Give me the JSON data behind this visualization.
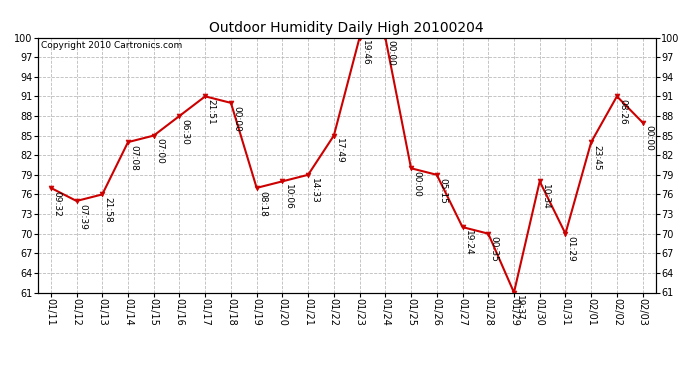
{
  "title": "Outdoor Humidity Daily High 20100204",
  "copyright": "Copyright 2010 Cartronics.com",
  "ylim": [
    61,
    100
  ],
  "yticks": [
    61,
    64,
    67,
    70,
    73,
    76,
    79,
    82,
    85,
    88,
    91,
    94,
    97,
    100
  ],
  "background_color": "#ffffff",
  "grid_color": "#bbbbbb",
  "line_color": "#cc0000",
  "marker_color": "#cc0000",
  "dates": [
    "01/11",
    "01/12",
    "01/13",
    "01/14",
    "01/15",
    "01/16",
    "01/17",
    "01/18",
    "01/19",
    "01/20",
    "01/21",
    "01/22",
    "01/23",
    "01/24",
    "01/25",
    "01/26",
    "01/27",
    "01/28",
    "01/29",
    "01/30",
    "01/31",
    "02/01",
    "02/02",
    "02/03"
  ],
  "values": [
    77,
    75,
    76,
    84,
    85,
    88,
    91,
    90,
    77,
    78,
    79,
    85,
    100,
    100,
    80,
    79,
    71,
    70,
    61,
    78,
    70,
    84,
    91,
    87
  ],
  "annotations": [
    "09:32",
    "07:39",
    "21:58",
    "07:08",
    "07:00",
    "06:30",
    "21:51",
    "00:00",
    "08:18",
    "10:06",
    "14:33",
    "17:49",
    "19:46",
    "00:00",
    "00:00",
    "05:15",
    "19:24",
    "00:35",
    "19:37",
    "10:34",
    "01:29",
    "23:45",
    "08:26",
    "00:00"
  ],
  "title_fontsize": 10,
  "tick_fontsize": 7,
  "annot_fontsize": 6.5,
  "copyright_fontsize": 6.5
}
